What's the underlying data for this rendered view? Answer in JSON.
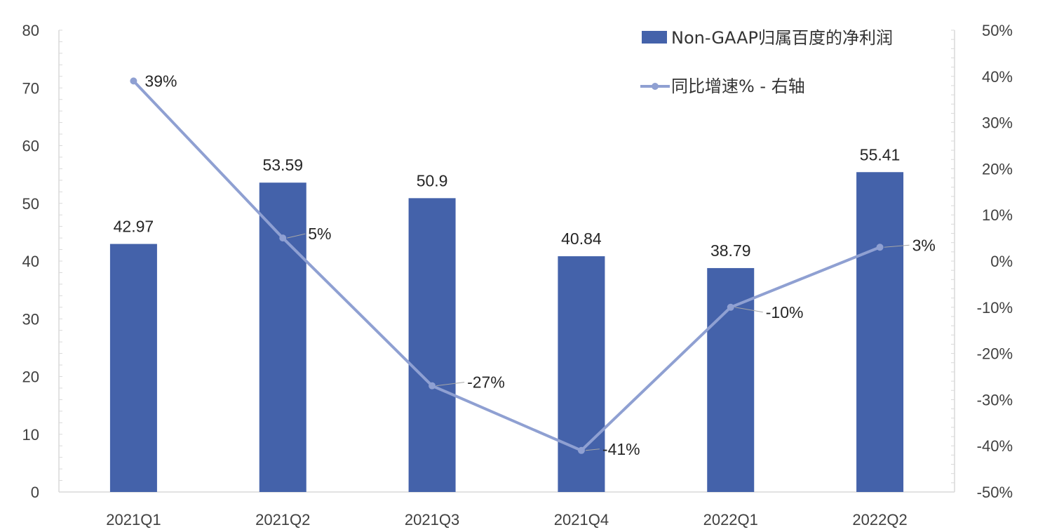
{
  "chart_data": {
    "type": "bar",
    "categories": [
      "2021Q1",
      "2021Q2",
      "2021Q3",
      "2021Q4",
      "2022Q1",
      "2022Q2"
    ],
    "series": [
      {
        "name": "Non-GAAP归属百度的净利润",
        "type": "bar",
        "axis": "left",
        "values": [
          42.97,
          53.59,
          50.9,
          40.84,
          38.79,
          55.41
        ],
        "labels": [
          "42.97",
          "53.59",
          "50.9",
          "40.84",
          "38.79",
          "55.41"
        ],
        "color": "#4462AA"
      },
      {
        "name": "同比增速% - 右轴",
        "type": "line",
        "axis": "right",
        "values": [
          39,
          5,
          -27,
          -41,
          -10,
          3
        ],
        "labels": [
          "39%",
          "5%",
          "-27%",
          "-41%",
          "-10%",
          "3%"
        ],
        "color": "#8FA0D2"
      }
    ],
    "y_left": {
      "range": [
        0,
        80
      ],
      "ticks": [
        "0",
        "10",
        "20",
        "30",
        "40",
        "50",
        "60",
        "70",
        "80"
      ]
    },
    "y_right": {
      "range": [
        -50,
        50
      ],
      "ticks": [
        "-50%",
        "-40%",
        "-30%",
        "-20%",
        "-10%",
        "0%",
        "10%",
        "20%",
        "30%",
        "40%",
        "50%"
      ]
    },
    "title": "",
    "xlabel": "",
    "ylabel": "",
    "grid": false,
    "legend_position": "top-right"
  }
}
